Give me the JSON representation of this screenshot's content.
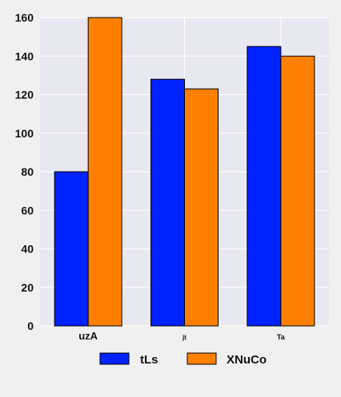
{
  "chart_data": {
    "type": "bar",
    "categories": [
      "uzA",
      "jt",
      "Ta"
    ],
    "series": [
      {
        "name": "tLs",
        "values": [
          80,
          128,
          145
        ],
        "color": "#0022ff"
      },
      {
        "name": "XNuCo",
        "values": [
          160,
          123,
          140
        ],
        "color": "#ff8000"
      }
    ],
    "ylim": [
      0,
      160
    ],
    "yticks": [
      0,
      20,
      40,
      60,
      80,
      100,
      120,
      140,
      160
    ],
    "grid": true,
    "legend_position": "bottom",
    "plot_background": "#e8e8f0",
    "figure_background": "#f0f0f0"
  }
}
